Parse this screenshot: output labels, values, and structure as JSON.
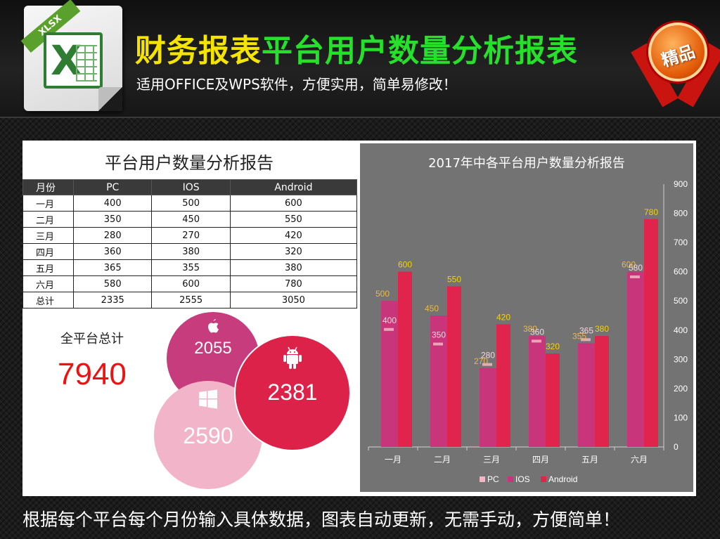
{
  "header": {
    "file_badge": "XLSX",
    "title_part1": "财务报表",
    "title_part2": "平台用户数量分析报表",
    "subtitle": "适用OFFICE及WPS软件，方便实用，简单易修改！",
    "badge": "精品"
  },
  "table": {
    "title": "平台用户数量分析报告",
    "headers": [
      "月份",
      "PC",
      "IOS",
      "Android"
    ],
    "rows": [
      [
        "一月",
        "400",
        "500",
        "600"
      ],
      [
        "二月",
        "350",
        "450",
        "550"
      ],
      [
        "三月",
        "280",
        "270",
        "420"
      ],
      [
        "四月",
        "360",
        "380",
        "320"
      ],
      [
        "五月",
        "365",
        "355",
        "380"
      ],
      [
        "六月",
        "580",
        "600",
        "780"
      ],
      [
        "总计",
        "2335",
        "2555",
        "3050"
      ]
    ]
  },
  "summary": {
    "label": "全平台总计",
    "value": "7940"
  },
  "bubbles": {
    "apple": "2055",
    "android": "2381",
    "windows": "2590"
  },
  "colors": {
    "pc": "#f2b6c4",
    "ios": "#c9357a",
    "android": "#e0244c",
    "chart_bg": "#737373",
    "label_yellow": "#f5d300",
    "label_faint": "#e9b84a"
  },
  "chart_data": {
    "type": "bar",
    "title": "2017年中各平台用户数量分析报告",
    "categories": [
      "一月",
      "二月",
      "三月",
      "四月",
      "五月",
      "六月"
    ],
    "series": [
      {
        "name": "PC",
        "values": [
          400,
          350,
          280,
          360,
          365,
          580
        ]
      },
      {
        "name": "IOS",
        "values": [
          500,
          450,
          270,
          380,
          355,
          600
        ]
      },
      {
        "name": "Android",
        "values": [
          600,
          550,
          420,
          320,
          380,
          780
        ]
      }
    ],
    "yticks": [
      "0",
      "100",
      "200",
      "300",
      "400",
      "500",
      "600",
      "700",
      "800",
      "900"
    ],
    "ylim": [
      0,
      900
    ],
    "yaxis_position": "right",
    "legend_position": "bottom",
    "grid": false
  },
  "footer": "根据每个平台每个月份输入具体数据，图表自动更新，无需手动，方便简单！"
}
